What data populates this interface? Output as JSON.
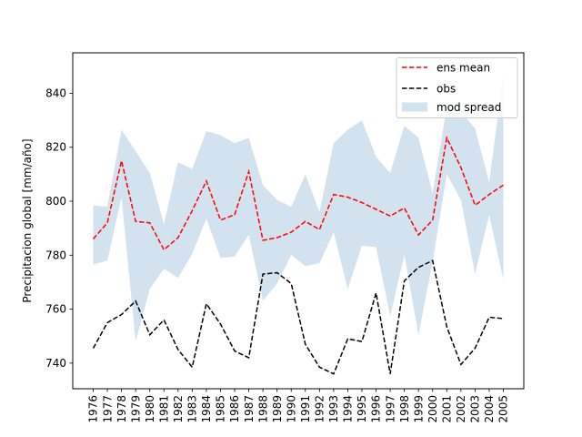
{
  "chart_data": {
    "type": "line",
    "title": "",
    "xlabel": "",
    "ylabel": "Precipitacion global [mm/año]",
    "ylim": [
      730.5,
      855
    ],
    "yticks": [
      740,
      760,
      780,
      800,
      820,
      840
    ],
    "grid": false,
    "legend_position": "upper-right",
    "categories": [
      "1976",
      "1977",
      "1978",
      "1979",
      "1980",
      "1981",
      "1982",
      "1983",
      "1984",
      "1985",
      "1986",
      "1987",
      "1988",
      "1989",
      "1990",
      "1991",
      "1992",
      "1993",
      "1994",
      "1995",
      "1996",
      "1997",
      "1998",
      "1999",
      "2000",
      "2001",
      "2002",
      "2003",
      "2004",
      "2005"
    ],
    "series": [
      {
        "name": "ens mean",
        "color": "#ff0000",
        "style": "dashed",
        "values": [
          786,
          792,
          815,
          792.5,
          792,
          782,
          786.5,
          796.5,
          807.5,
          793,
          795,
          811,
          785.5,
          786.5,
          788.5,
          792.5,
          789.5,
          802.5,
          801.5,
          799.5,
          797,
          794.5,
          797.5,
          787.5,
          793,
          823.5,
          812.5,
          798.5,
          802.5,
          806
        ]
      },
      {
        "name": "obs",
        "color": "#000000",
        "style": "dashed",
        "values": [
          745.5,
          755,
          758,
          763,
          750.5,
          756,
          745,
          738.5,
          762,
          754.5,
          744.5,
          742,
          773,
          773.5,
          769.5,
          747,
          738.5,
          736,
          749,
          748,
          766,
          736,
          770.5,
          775.5,
          778,
          753.5,
          739.5,
          745.5,
          757,
          756.5
        ]
      }
    ],
    "band": {
      "name": "mod spread",
      "color": "#a6c8e0",
      "upper": [
        798.5,
        798,
        826.5,
        818.5,
        810.5,
        791.5,
        814.5,
        812,
        826,
        824.5,
        821.5,
        823.5,
        806,
        800.5,
        798,
        810,
        796,
        821.5,
        826.5,
        830,
        816.5,
        810.5,
        828,
        823.5,
        803,
        835,
        833,
        827,
        807,
        847
      ],
      "lower": [
        776.5,
        778,
        801.5,
        748,
        767.5,
        775,
        771.5,
        780.5,
        793.5,
        779,
        779.5,
        787.5,
        763,
        769.5,
        780,
        776,
        777,
        788.5,
        767.5,
        783.5,
        783,
        757.5,
        780,
        750.5,
        777.5,
        810,
        800.5,
        773,
        795,
        771
      ]
    }
  }
}
